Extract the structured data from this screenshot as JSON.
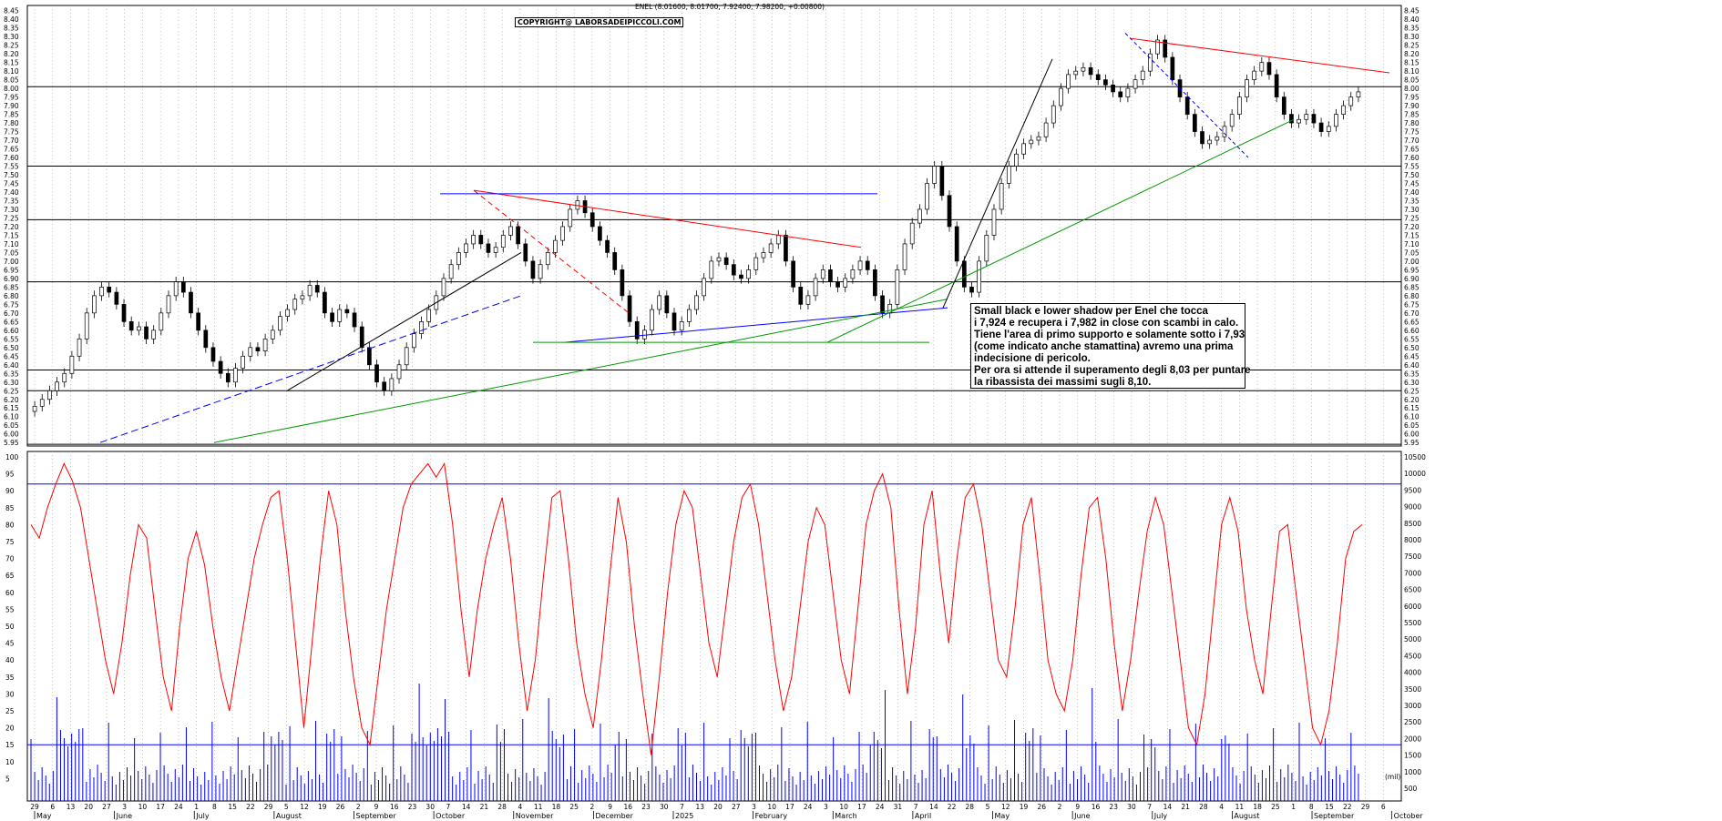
{
  "chart_data": [
    {
      "type": "candlestick",
      "title": "ENEL (8.01600, 8.01700, 7.92400, 7.98200, +0.00800)",
      "watermark": "COPYRIGHT@ LABORSADEIPICCOLI.COM",
      "ylim": [
        5.93,
        8.48
      ],
      "y_ticks": [
        "5.95",
        "6.00",
        "6.05",
        "6.10",
        "6.15",
        "6.20",
        "6.25",
        "6.30",
        "6.35",
        "6.40",
        "6.45",
        "6.50",
        "6.55",
        "6.60",
        "6.65",
        "6.70",
        "6.75",
        "6.80",
        "6.85",
        "6.90",
        "6.95",
        "7.00",
        "7.05",
        "7.10",
        "7.15",
        "7.20",
        "7.25",
        "7.30",
        "7.35",
        "7.40",
        "7.45",
        "7.50",
        "7.55",
        "7.60",
        "7.65",
        "7.70",
        "7.75",
        "7.80",
        "7.85",
        "7.90",
        "7.95",
        "8.00",
        "8.05",
        "8.10",
        "8.15",
        "8.20",
        "8.25",
        "8.30",
        "8.35",
        "8.40",
        "8.45"
      ],
      "horizontal_levels": [
        6.25,
        6.37,
        6.88,
        7.24,
        7.55,
        8.01,
        5.94
      ],
      "close_series": [
        6.16,
        6.2,
        6.25,
        6.3,
        6.35,
        6.45,
        6.55,
        6.7,
        6.8,
        6.85,
        6.82,
        6.75,
        6.65,
        6.6,
        6.62,
        6.55,
        6.6,
        6.7,
        6.8,
        6.88,
        6.82,
        6.7,
        6.6,
        6.5,
        6.42,
        6.35,
        6.3,
        6.38,
        6.45,
        6.5,
        6.48,
        6.55,
        6.6,
        6.68,
        6.72,
        6.78,
        6.8,
        6.86,
        6.82,
        6.7,
        6.65,
        6.72,
        6.7,
        6.62,
        6.5,
        6.4,
        6.3,
        6.25,
        6.32,
        6.4,
        6.5,
        6.58,
        6.65,
        6.72,
        6.8,
        6.9,
        6.98,
        7.05,
        7.1,
        7.15,
        7.1,
        7.05,
        7.08,
        7.15,
        7.2,
        7.1,
        7.0,
        6.9,
        6.98,
        7.05,
        7.12,
        7.2,
        7.3,
        7.35,
        7.28,
        7.2,
        7.12,
        7.05,
        6.95,
        6.8,
        6.65,
        6.55,
        6.6,
        6.72,
        6.8,
        6.7,
        6.6,
        6.65,
        6.72,
        6.8,
        6.9,
        7.0,
        7.02,
        6.98,
        6.92,
        6.9,
        6.95,
        7.02,
        7.05,
        7.1,
        7.15,
        7.0,
        6.85,
        6.75,
        6.8,
        6.9,
        6.95,
        6.88,
        6.85,
        6.9,
        6.95,
        7.0,
        6.95,
        6.8,
        6.7,
        6.75,
        6.95,
        7.1,
        7.22,
        7.3,
        7.45,
        7.55,
        7.38,
        7.2,
        7.0,
        6.85,
        6.82,
        7.0,
        7.15,
        7.3,
        7.45,
        7.55,
        7.62,
        7.68,
        7.7,
        7.72,
        7.8,
        7.9,
        8.0,
        8.08,
        8.1,
        8.12,
        8.08,
        8.05,
        8.02,
        7.98,
        7.95,
        8.0,
        8.05,
        8.1,
        8.2,
        8.28,
        8.18,
        8.05,
        7.95,
        7.85,
        7.75,
        7.68,
        7.7,
        7.72,
        7.78,
        7.85,
        7.95,
        8.05,
        8.1,
        8.15,
        8.08,
        7.95,
        7.85,
        7.8,
        7.82,
        7.85,
        7.8,
        7.75,
        7.78,
        7.85,
        7.9,
        7.95,
        7.98
      ]
    },
    {
      "type": "line+bar",
      "ylim_left": [
        0,
        100
      ],
      "left_ticks": [
        "5",
        "10",
        "15",
        "20",
        "25",
        "30",
        "35",
        "40",
        "45",
        "50",
        "55",
        "60",
        "65",
        "70",
        "75",
        "80",
        "85",
        "90",
        "95",
        "100"
      ],
      "right_ticks": [
        "500",
        "1000",
        "1500",
        "2000",
        "2500",
        "3000",
        "3500",
        "4000",
        "4500",
        "5000",
        "5500",
        "6000",
        "6500",
        "7000",
        "7500",
        "8000",
        "8500",
        "9000",
        "9500",
        "10000",
        "10500"
      ],
      "right_unit": "(mil)",
      "horizontal_levels": [
        15,
        92
      ],
      "oscillator": [
        80,
        76,
        85,
        92,
        98,
        93,
        85,
        70,
        55,
        40,
        30,
        45,
        65,
        80,
        76,
        55,
        35,
        25,
        50,
        70,
        78,
        68,
        50,
        35,
        25,
        40,
        55,
        70,
        80,
        88,
        90,
        70,
        45,
        20,
        45,
        70,
        90,
        80,
        55,
        35,
        20,
        15,
        35,
        55,
        70,
        85,
        92,
        95,
        98,
        94,
        98,
        80,
        55,
        35,
        55,
        70,
        80,
        88,
        70,
        45,
        25,
        40,
        65,
        88,
        90,
        70,
        45,
        30,
        20,
        40,
        65,
        88,
        75,
        50,
        30,
        12,
        35,
        60,
        80,
        90,
        85,
        65,
        45,
        35,
        55,
        75,
        88,
        92,
        80,
        60,
        40,
        25,
        35,
        55,
        75,
        85,
        80,
        60,
        40,
        30,
        55,
        80,
        90,
        95,
        85,
        55,
        30,
        50,
        80,
        90,
        65,
        45,
        70,
        88,
        92,
        80,
        60,
        40,
        35,
        55,
        80,
        88,
        65,
        40,
        30,
        25,
        40,
        65,
        85,
        88,
        70,
        45,
        25,
        40,
        60,
        78,
        88,
        80,
        60,
        40,
        20,
        15,
        30,
        55,
        80,
        88,
        78,
        55,
        40,
        30,
        55,
        78,
        80,
        60,
        40,
        20,
        15,
        25,
        45,
        70,
        78,
        80
      ]
    }
  ],
  "x_axis": {
    "day_labels": [
      "29",
      "6",
      "13",
      "20",
      "27",
      "3",
      "10",
      "17",
      "24",
      "1",
      "8",
      "15",
      "22",
      "29",
      "5",
      "12",
      "19",
      "26",
      "2",
      "9",
      "16",
      "23",
      "30",
      "7",
      "14",
      "21",
      "28",
      "4",
      "11",
      "18",
      "25",
      "2",
      "9",
      "16",
      "23",
      "30",
      "7",
      "13",
      "20",
      "27",
      "3",
      "10",
      "17",
      "24",
      "3",
      "10",
      "17",
      "24",
      "31",
      "7",
      "14",
      "22",
      "28",
      "5",
      "12",
      "19",
      "26",
      "2",
      "9",
      "16",
      "23",
      "30",
      "7",
      "14",
      "21",
      "28",
      "4",
      "11",
      "18",
      "25",
      "1",
      "8",
      "15",
      "22",
      "29",
      "6"
    ],
    "month_labels": [
      "May",
      "June",
      "July",
      "August",
      "September",
      "October",
      "November",
      "December",
      "2025",
      "February",
      "March",
      "April",
      "May",
      "June",
      "July",
      "August",
      "September",
      "October"
    ]
  },
  "annotation": {
    "lines": [
      "Small black e lower shadow per Enel che tocca",
      "i 7,924 e recupera i 7,982 in close con scambi in calo.",
      "Tiene l'area di primo supporto e solamente sotto i 7,93",
      "(come indicato anche stamattina) avremo una prima",
      "indecisione di pericolo.",
      "Per ora si attende il superamento degli 8,03 per puntare",
      "la ribassista dei massimi sugli 8,10."
    ]
  },
  "colors": {
    "up_candle": "#ffffff",
    "down_candle": "#000000",
    "oscillator": "#ff0000",
    "volume": "#0000ff",
    "trend_red": "#ff0000",
    "trend_blue": "#0000ff",
    "trend_green": "#009900",
    "trend_black": "#000000"
  }
}
